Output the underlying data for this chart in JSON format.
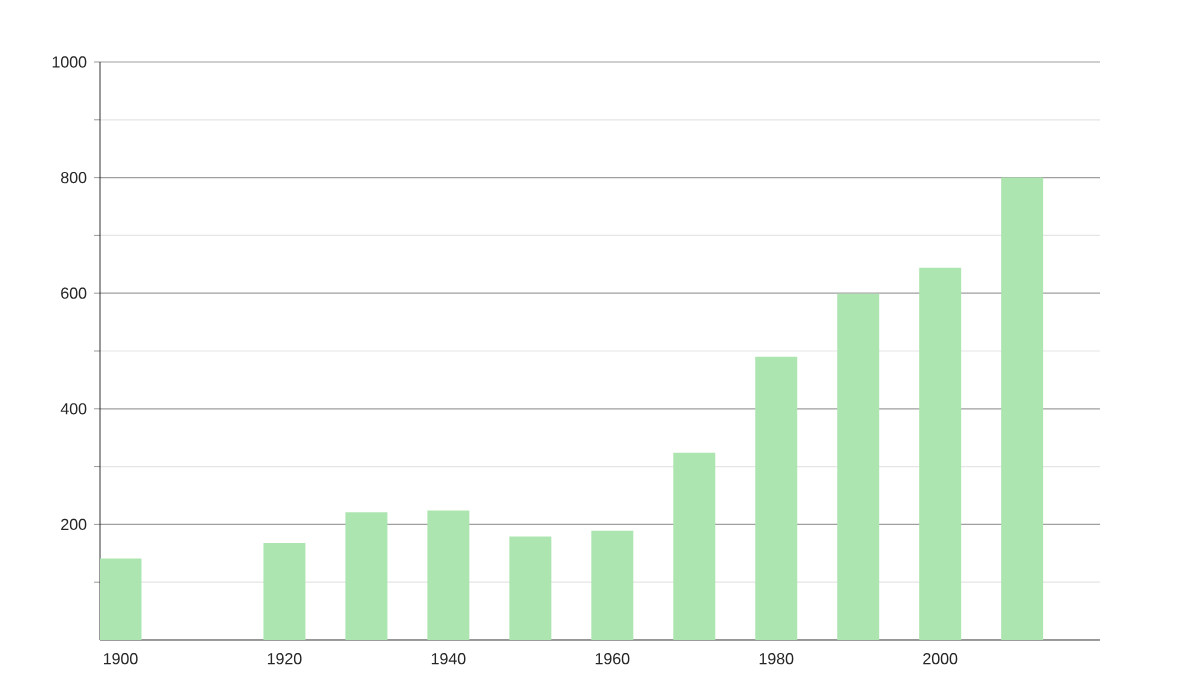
{
  "chart_data": {
    "type": "bar",
    "x": [
      1900,
      1920,
      1930,
      1940,
      1950,
      1960,
      1970,
      1980,
      1990,
      2000,
      2010
    ],
    "values": [
      141,
      168,
      221,
      224,
      179,
      189,
      324,
      490,
      599,
      644,
      800
    ],
    "color": "#ade5b0",
    "xlim": [
      1897.5,
      2019.5
    ],
    "xticks": [
      1900,
      1920,
      1940,
      1960,
      1980,
      2000
    ],
    "ylim": [
      0,
      1000
    ],
    "yticks": [
      {
        "value": 100,
        "label": null
      },
      200,
      {
        "value": 300,
        "label": null
      },
      400,
      {
        "value": 500,
        "label": null
      },
      600,
      {
        "value": 700,
        "label": null
      },
      800,
      {
        "value": 900,
        "label": null
      },
      1000
    ],
    "grid": "y"
  }
}
